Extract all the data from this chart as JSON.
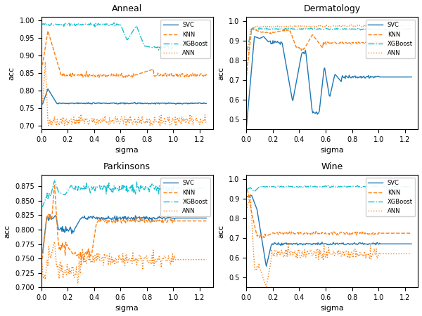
{
  "titles": [
    "Anneal",
    "Dermatology",
    "Parkinsons",
    "Wine"
  ],
  "xlabel": "sigma",
  "ylabel": "acc",
  "colors": {
    "SVC": "#1f77b4",
    "KNN": "#ff7f0e",
    "XGBoost": "#17becf",
    "ANN": "#ff7f0e"
  },
  "linestyles": {
    "SVC": "-",
    "KNN": "--",
    "XGBoost": "-.",
    "ANN": ":"
  },
  "ylims": {
    "Anneal": [
      0.69,
      1.01
    ],
    "Dermatology": [
      0.45,
      1.02
    ],
    "Parkinsons": [
      0.7,
      0.895
    ],
    "Wine": [
      0.45,
      1.02
    ]
  },
  "yticks": {
    "Anneal": [
      0.7,
      0.75,
      0.8,
      0.85,
      0.9,
      0.95,
      1.0
    ],
    "Dermatology": [
      0.5,
      0.6,
      0.7,
      0.8,
      0.9,
      1.0
    ],
    "Parkinsons": [
      0.7,
      0.725,
      0.75,
      0.775,
      0.8,
      0.825,
      0.85,
      0.875
    ],
    "Wine": [
      0.5,
      0.6,
      0.7,
      0.8,
      0.9,
      1.0
    ]
  },
  "xticks": [
    0.0,
    0.2,
    0.4,
    0.6,
    0.8,
    1.0,
    1.2
  ],
  "xlim": [
    0.0,
    1.3
  ]
}
